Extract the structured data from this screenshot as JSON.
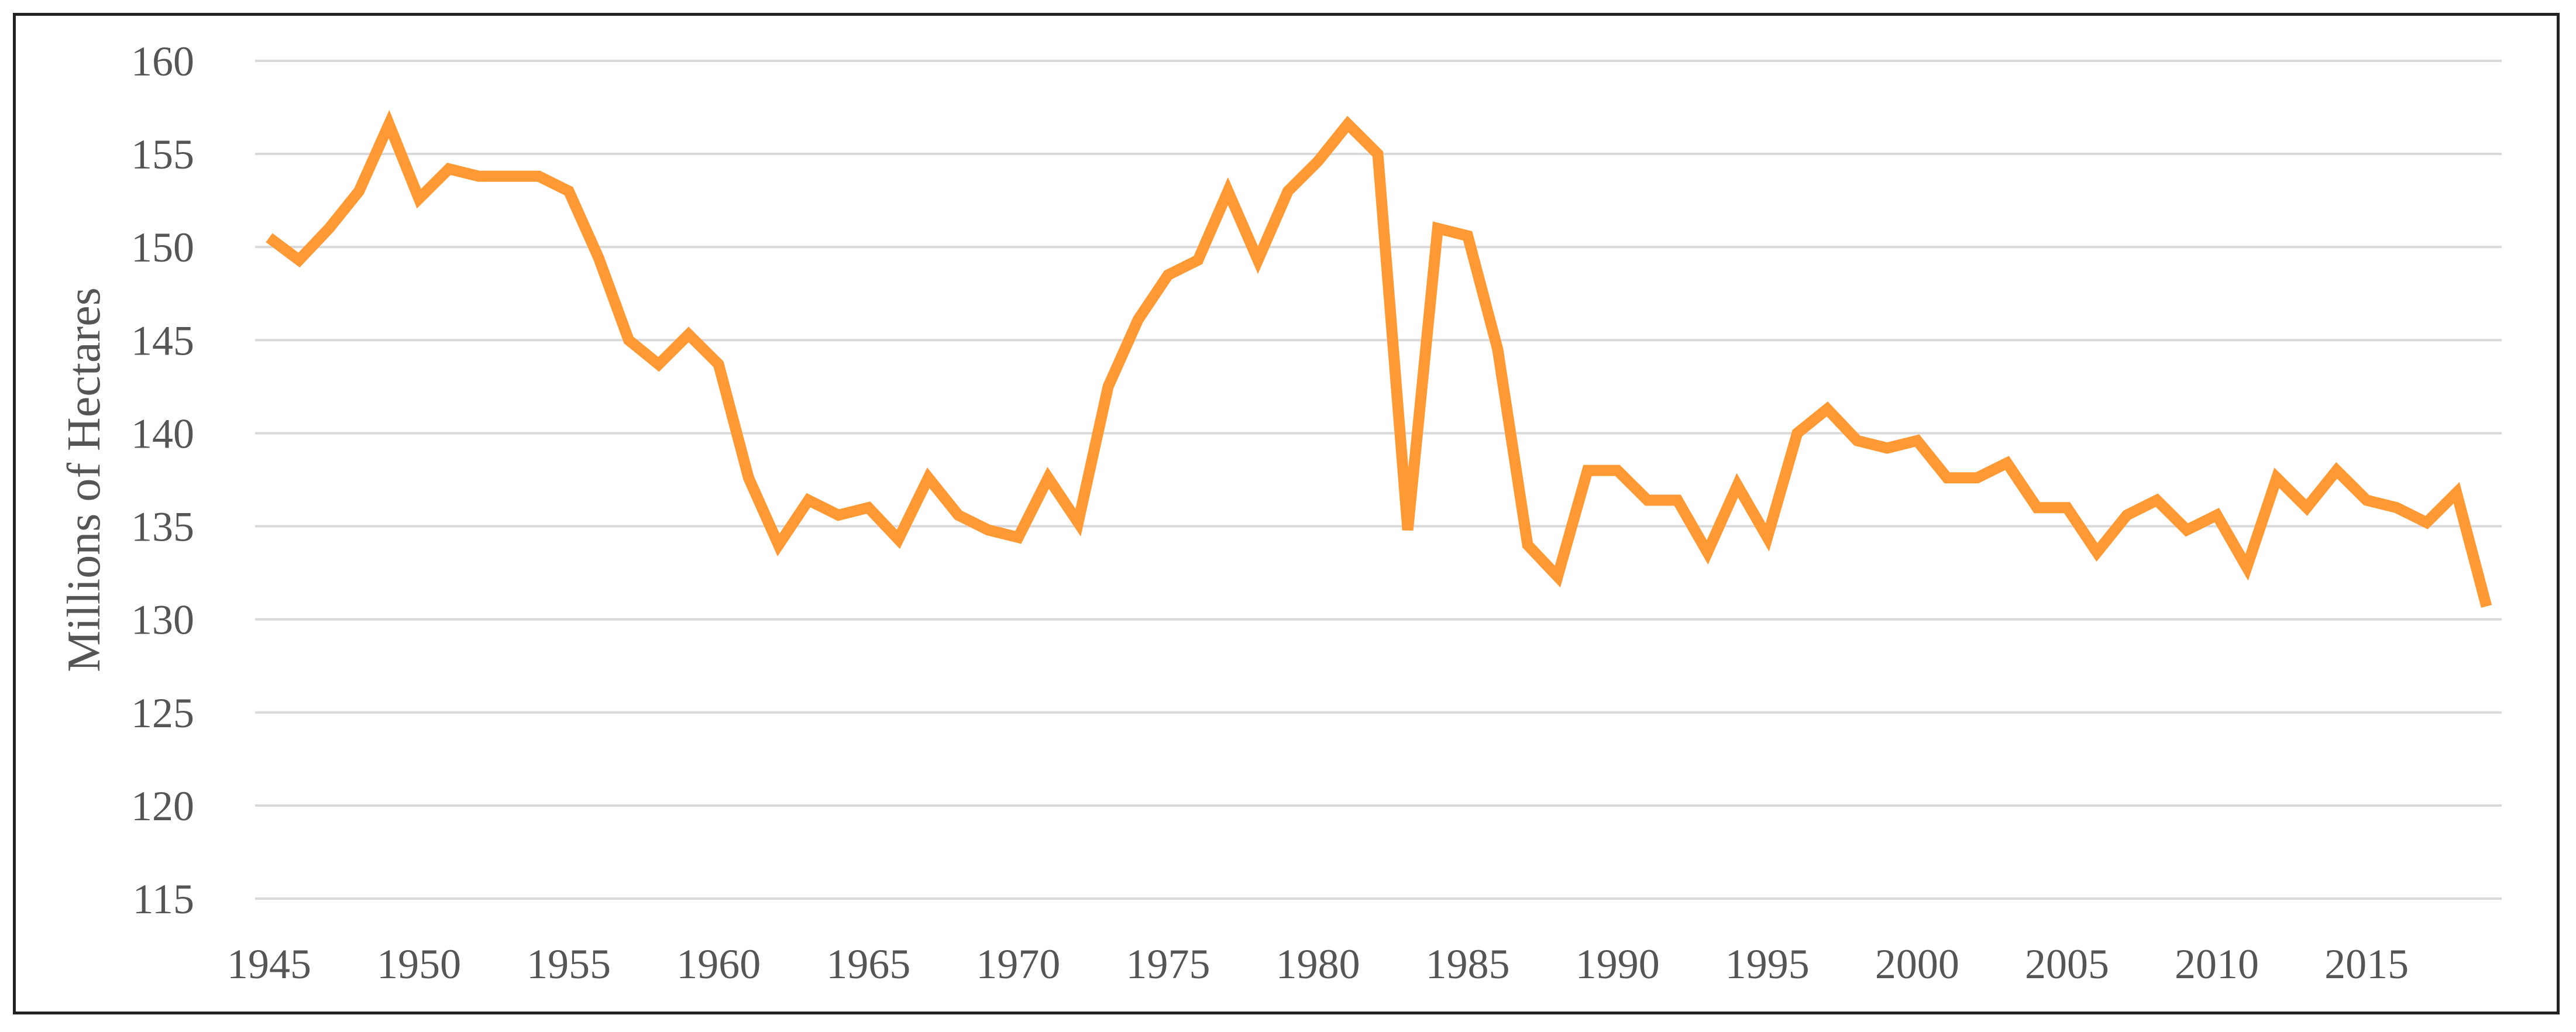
{
  "chart_data": {
    "type": "line",
    "title": "",
    "xlabel": "",
    "ylabel": "Millions of Hectares",
    "ylim": [
      115,
      160
    ],
    "xlim": [
      1945,
      2019
    ],
    "grid": true,
    "legend": "none",
    "x_ticks": [
      1945,
      1950,
      1955,
      1960,
      1965,
      1970,
      1975,
      1980,
      1985,
      1990,
      1995,
      2000,
      2005,
      2010,
      2015
    ],
    "y_ticks": [
      115,
      120,
      125,
      130,
      135,
      140,
      145,
      150,
      155,
      160
    ],
    "series_color": "#FF9933",
    "grid_color": "#D9D9D9",
    "series": [
      {
        "x": [
          1945,
          1946,
          1947,
          1948,
          1949,
          1950,
          1951,
          1952,
          1953,
          1954,
          1955,
          1956,
          1957,
          1958,
          1959,
          1960,
          1961,
          1962,
          1963,
          1964,
          1965,
          1966,
          1967,
          1968,
          1969,
          1970,
          1971,
          1972,
          1973,
          1974,
          1975,
          1976,
          1977,
          1978,
          1979,
          1980,
          1981,
          1982,
          1983,
          1984,
          1985,
          1986,
          1987,
          1988,
          1989,
          1990,
          1991,
          1992,
          1993,
          1994,
          1995,
          1996,
          1997,
          1998,
          1999,
          2000,
          2001,
          2002,
          2003,
          2004,
          2005,
          2006,
          2007,
          2008,
          2009,
          2010,
          2011,
          2012,
          2013,
          2014,
          2015,
          2016,
          2017,
          2018,
          2019
        ],
        "values": [
          150.5,
          149.3,
          151.0,
          153.0,
          156.6,
          152.6,
          154.2,
          153.8,
          153.8,
          153.8,
          153.0,
          149.4,
          145.0,
          143.7,
          145.3,
          143.7,
          137.6,
          134.0,
          136.4,
          135.6,
          136.0,
          134.3,
          137.6,
          135.6,
          134.8,
          134.4,
          137.6,
          135.2,
          142.5,
          146.1,
          148.5,
          149.3,
          153.0,
          149.3,
          153.0,
          154.6,
          156.6,
          155.0,
          134.8,
          151.0,
          150.6,
          144.5,
          134.0,
          132.3,
          138.0,
          138.0,
          136.4,
          136.4,
          133.6,
          137.2,
          134.4,
          140.0,
          141.3,
          139.6,
          139.2,
          139.6,
          137.6,
          137.6,
          138.4,
          136.0,
          136.0,
          133.6,
          135.6,
          136.4,
          134.8,
          135.6,
          132.8,
          137.6,
          136.0,
          138.0,
          136.4,
          136.0,
          135.2,
          136.8,
          130.7
        ]
      }
    ]
  }
}
